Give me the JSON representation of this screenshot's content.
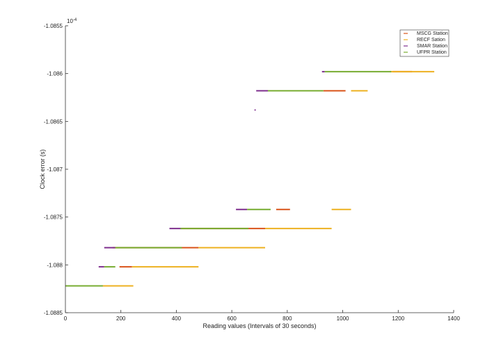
{
  "chart_data": {
    "type": "line",
    "xlabel": "Reading values (Intervals of 30 seconds)",
    "ylabel": "Clock error (s)",
    "y_multiplier": "10^{-4}",
    "xlim": [
      0,
      1400
    ],
    "ylim": [
      -1.0885,
      -1.0855
    ],
    "x_ticks": [
      0,
      200,
      400,
      600,
      800,
      1000,
      1200,
      1400
    ],
    "y_ticks": [
      -1.0885,
      -1.088,
      -1.0875,
      -1.087,
      -1.0865,
      -1.086,
      -1.0855
    ],
    "x_tick_labels": [
      "0",
      "200",
      "400",
      "600",
      "800",
      "1000",
      "1200",
      "1400"
    ],
    "y_tick_labels": [
      "-1.0885",
      "-1.088",
      "-1.0875",
      "-1.087",
      "-1.0865",
      "-1.086",
      "-1.0855"
    ],
    "grid": false,
    "legend_position": "top-right",
    "series": [
      {
        "name": "MSCG Station",
        "color": "#d95319",
        "segments": [
          {
            "x0": 0,
            "x1": 185,
            "y": -1.08822
          },
          {
            "x0": 195,
            "x1": 240,
            "y": -1.08802
          },
          {
            "x0": 170,
            "x1": 480,
            "y": -1.08782
          },
          {
            "x0": 420,
            "x1": 720,
            "y": -1.08762
          },
          {
            "x0": 760,
            "x1": 810,
            "y": -1.08742
          },
          {
            "x0": 930,
            "x1": 1010,
            "y": -1.08618
          },
          {
            "x0": 1180,
            "x1": 1250,
            "y": -1.08598
          }
        ]
      },
      {
        "name": "RECF Sation",
        "color": "#edb120",
        "segments": [
          {
            "x0": 130,
            "x1": 245,
            "y": -1.08822
          },
          {
            "x0": 240,
            "x1": 480,
            "y": -1.08802
          },
          {
            "x0": 480,
            "x1": 720,
            "y": -1.08782
          },
          {
            "x0": 720,
            "x1": 960,
            "y": -1.08762
          },
          {
            "x0": 960,
            "x1": 1030,
            "y": -1.08742
          },
          {
            "x0": 1030,
            "x1": 1090,
            "y": -1.08618
          },
          {
            "x0": 1170,
            "x1": 1330,
            "y": -1.08598
          }
        ]
      },
      {
        "name": "SMAR Station",
        "color": "#7e2f8e",
        "segments": [
          {
            "x0": 120,
            "x1": 140,
            "y": -1.08802
          },
          {
            "x0": 140,
            "x1": 180,
            "y": -1.08782
          },
          {
            "x0": 375,
            "x1": 420,
            "y": -1.08762
          },
          {
            "x0": 615,
            "x1": 655,
            "y": -1.08742
          },
          {
            "x0": 682,
            "x1": 686,
            "y": -1.08638
          },
          {
            "x0": 688,
            "x1": 730,
            "y": -1.08618
          },
          {
            "x0": 925,
            "x1": 935,
            "y": -1.08598
          }
        ]
      },
      {
        "name": "UFPR Station",
        "color": "#77ac30",
        "segments": [
          {
            "x0": 0,
            "x1": 135,
            "y": -1.08822
          },
          {
            "x0": 140,
            "x1": 180,
            "y": -1.08802
          },
          {
            "x0": 180,
            "x1": 420,
            "y": -1.08782
          },
          {
            "x0": 415,
            "x1": 660,
            "y": -1.08762
          },
          {
            "x0": 655,
            "x1": 740,
            "y": -1.08742
          },
          {
            "x0": 730,
            "x1": 930,
            "y": -1.08618
          },
          {
            "x0": 935,
            "x1": 1175,
            "y": -1.08598
          }
        ]
      }
    ]
  }
}
